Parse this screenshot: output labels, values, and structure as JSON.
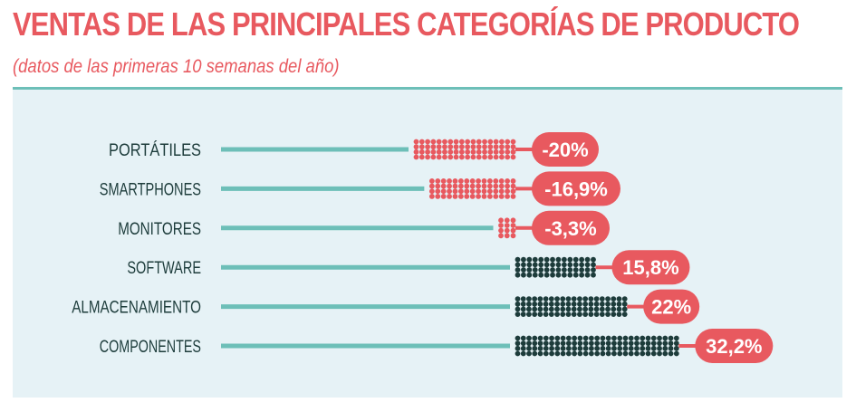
{
  "title": "VENTAS DE LAS PRINCIPALES CATEGORÍAS DE PRODUCTO",
  "subtitle": "(datos de las primeras 10 semanas del año)",
  "colors": {
    "title": "#e8595f",
    "subtitle": "#e8595f",
    "rule": "#6dbfb8",
    "panel": "#e6f2f6",
    "teal_line": "#6dbfb8",
    "negative": "#e8595f",
    "positive": "#1d3c3b",
    "label_text": "#1d3c3b",
    "badge_text": "#ffffff"
  },
  "chart_data": {
    "type": "bar",
    "categories": [
      "PORTÁTILES",
      "SMARTPHONES",
      "MONITORES",
      "SOFTWARE",
      "ALMACENAMIENTO",
      "COMPONENTES"
    ],
    "values": [
      -20,
      -16.9,
      -3.3,
      15.8,
      22,
      32.2
    ],
    "value_labels": [
      "-20%",
      "-16,9%",
      "-3,3%",
      "15,8%",
      "22%",
      "32,2%"
    ],
    "unit": "%"
  }
}
